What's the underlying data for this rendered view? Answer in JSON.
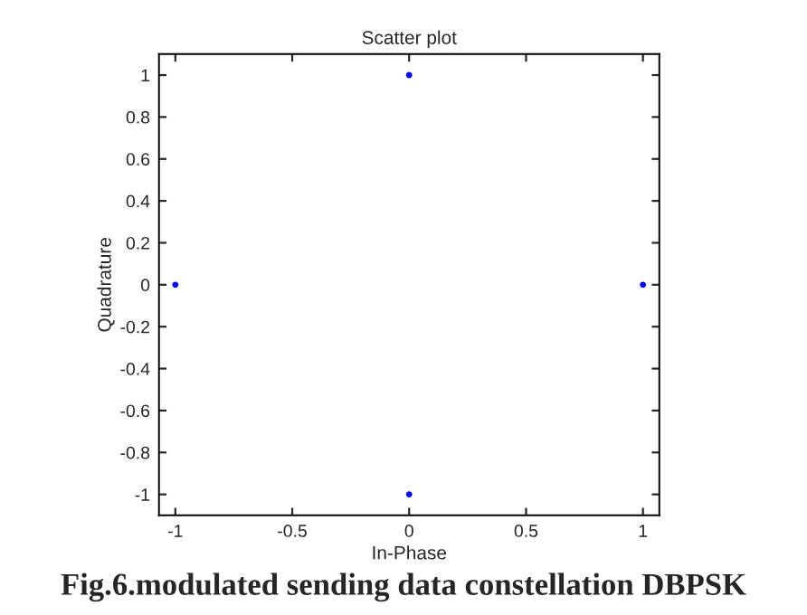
{
  "chart_data": {
    "type": "scatter",
    "title": "Scatter plot",
    "xlabel": "In-Phase",
    "ylabel": "Quadrature",
    "series": [
      {
        "color": "#0000ff",
        "x": [
          1,
          -1,
          0,
          0
        ],
        "values": [
          0,
          0,
          1,
          -1
        ]
      }
    ],
    "marker": "circle",
    "grid": false,
    "xlim": [
      -1.07,
      1.07
    ],
    "xticks": [
      -1,
      -0.5,
      0,
      0.5,
      1
    ],
    "ylim": [
      -1.1,
      1.1
    ],
    "yticks": [
      -1,
      -0.8,
      -0.6,
      -0.4,
      -0.2,
      0,
      0.2,
      0.4,
      0.6,
      0.8,
      1
    ],
    "annotations": [
      "Fig.6.modulated sending data constellation DBPSK"
    ]
  }
}
